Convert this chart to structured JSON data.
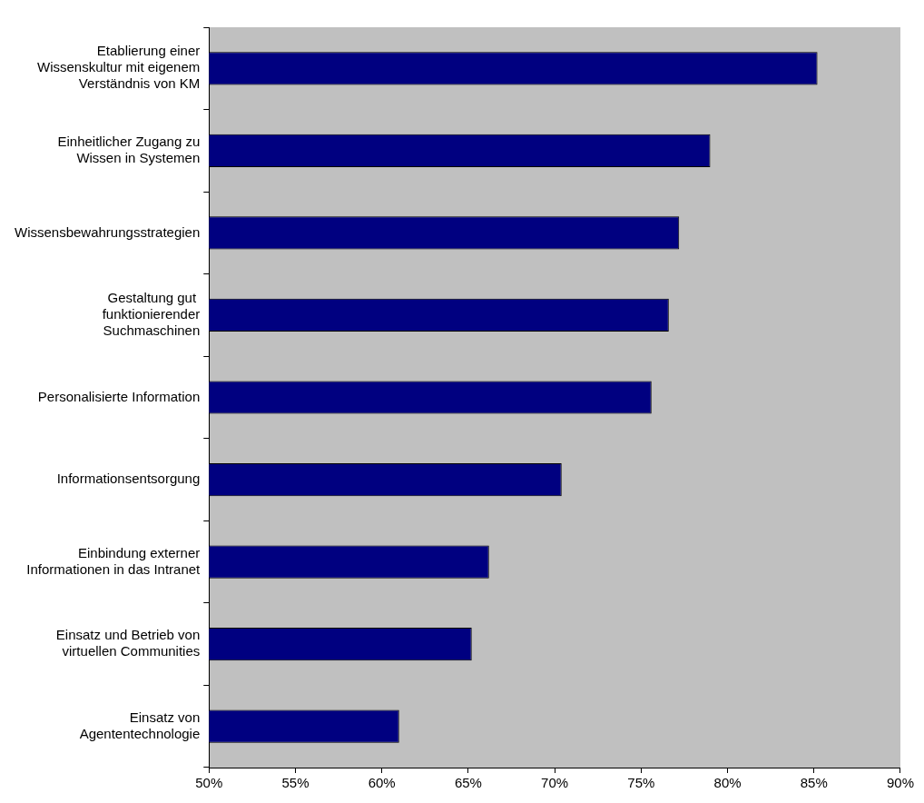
{
  "chart_data": {
    "type": "bar",
    "orientation": "horizontal",
    "categories": [
      "Etablierung einer\nWissenskultur mit eigenem\nVerständnis von KM",
      "Einheitlicher Zugang zu\nWissen in Systemen",
      "Wissensbewahrungsstrategien",
      "Gestaltung gut \nfunktionierender\nSuchmaschinen",
      "Personalisierte Information",
      "Informationsentsorgung",
      "Einbindung externer\nInformationen in das Intranet",
      "Einsatz und Betrieb von\nvirtuellen Communities",
      "Einsatz von\nAgententechnologie"
    ],
    "values": [
      85.2,
      79.0,
      77.2,
      76.6,
      75.6,
      70.4,
      66.2,
      65.2,
      61.0
    ],
    "color": "#000080",
    "xlim": [
      50,
      90
    ],
    "xticks": [
      {
        "value": 50,
        "label": "50%"
      },
      {
        "value": 55,
        "label": "55%"
      },
      {
        "value": 60,
        "label": "60%"
      },
      {
        "value": 65,
        "label": "65%"
      },
      {
        "value": 70,
        "label": "70%"
      },
      {
        "value": 75,
        "label": "75%"
      },
      {
        "value": 80,
        "label": "80%"
      },
      {
        "value": 85,
        "label": "85%"
      },
      {
        "value": 90,
        "label": "90%"
      }
    ],
    "grid": false,
    "legend": false
  }
}
